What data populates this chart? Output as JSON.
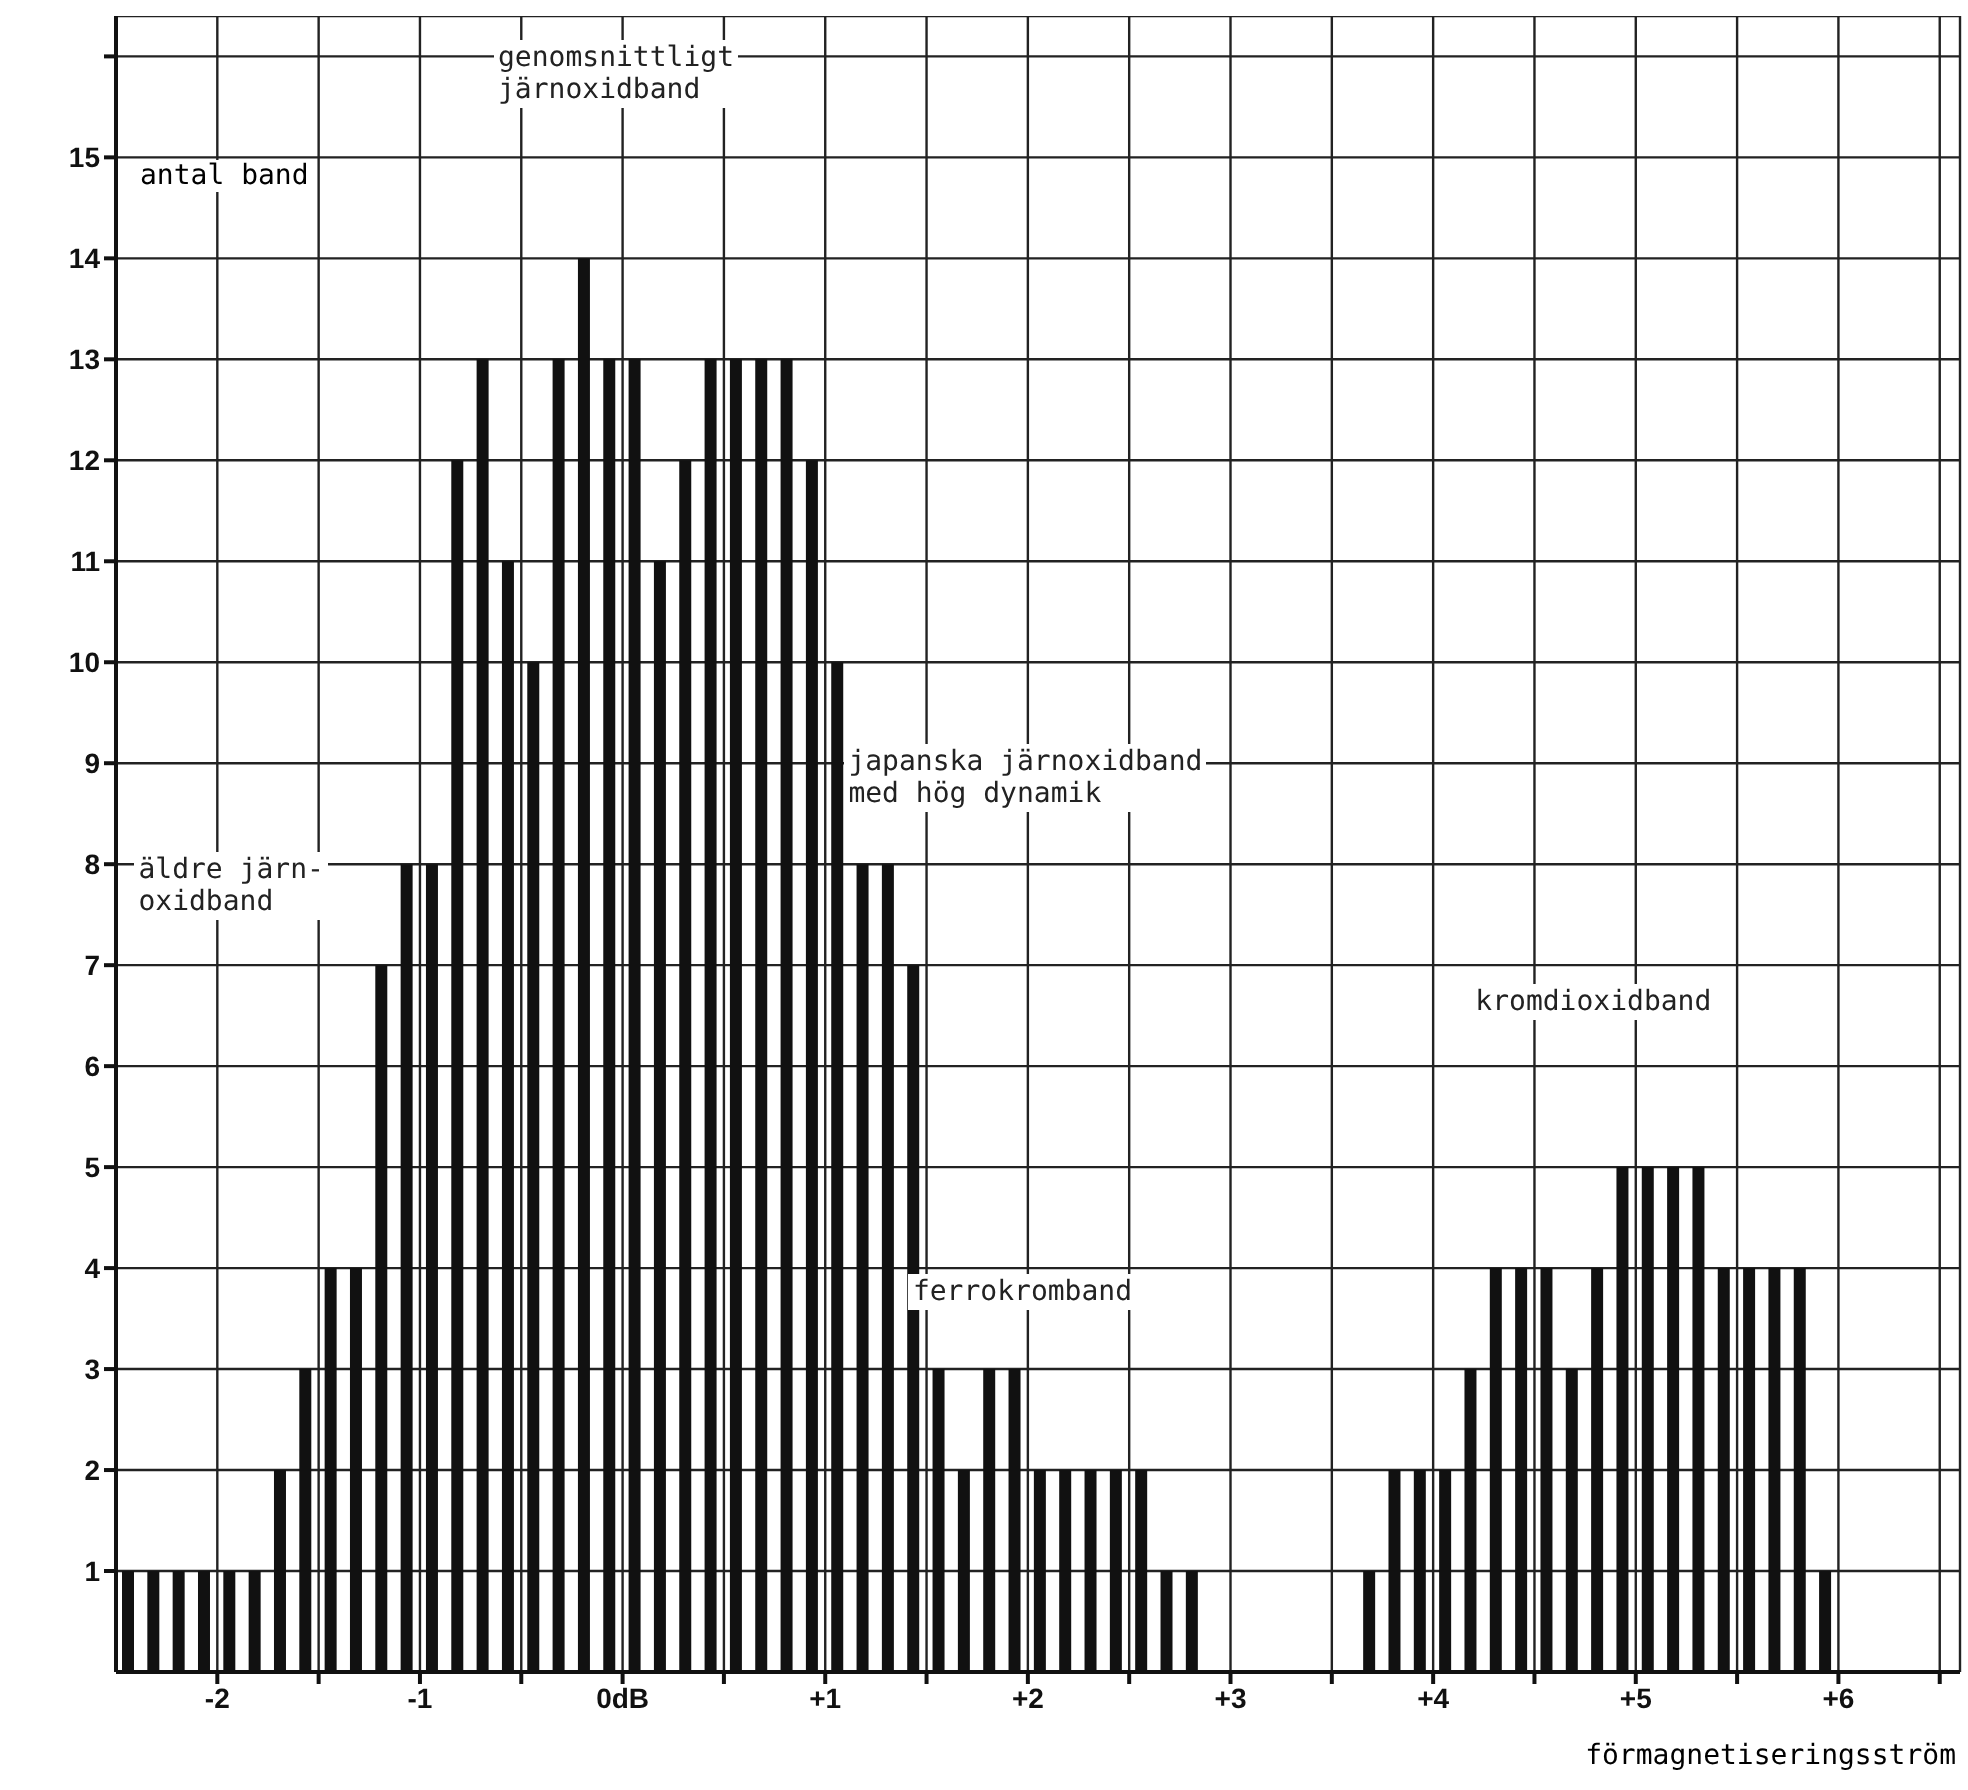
{
  "chart_data": {
    "type": "histogram",
    "xlabel": "förmagnetiseringsström",
    "ylabel": "antal band",
    "bins": [
      -2.5,
      -2.375,
      -2.25,
      -2.125,
      -2,
      -1.875,
      -1.75,
      -1.625,
      -1.5,
      -1.375,
      -1.25,
      -1.125,
      -1,
      -0.875,
      -0.75,
      -0.625,
      -0.5,
      -0.375,
      -0.25,
      -0.125,
      0,
      0.125,
      0.25,
      0.375,
      0.5,
      0.625,
      0.75,
      0.875,
      1,
      1.125,
      1.25,
      1.375,
      1.5,
      1.625,
      1.75,
      1.875,
      2,
      2.125,
      2.25,
      2.375,
      2.5,
      2.625,
      2.75,
      2.875,
      3,
      3.125,
      3.25,
      3.375,
      3.5,
      3.625,
      3.75,
      3.875,
      4,
      4.125,
      4.25,
      4.375,
      4.5,
      4.625,
      4.75,
      4.875,
      5,
      5.125,
      5.25,
      5.375,
      5.5,
      5.625,
      5.75,
      5.875,
      6
    ],
    "values": [
      1,
      1,
      1,
      1,
      1,
      1,
      2,
      3,
      4,
      4,
      7,
      8,
      8,
      12,
      13,
      11,
      10,
      13,
      14,
      13,
      13,
      11,
      12,
      13,
      13,
      13,
      13,
      12,
      10,
      8,
      8,
      7,
      3,
      2,
      3,
      3,
      2,
      2,
      2,
      2,
      2,
      1,
      1,
      0,
      0,
      0,
      0,
      0,
      0,
      1,
      2,
      2,
      2,
      3,
      4,
      4,
      4,
      3,
      4,
      5,
      5,
      5,
      5,
      4,
      4,
      4,
      4,
      1
    ],
    "color": "#111111",
    "xlim": [
      -2.5,
      6.6
    ],
    "xticks": [
      {
        "value": -2,
        "label": "-2"
      },
      {
        "value": -1.5,
        "label": null
      },
      {
        "value": -1,
        "label": "-1"
      },
      {
        "value": -0.5,
        "label": null
      },
      {
        "value": 0,
        "label": "0dB"
      },
      {
        "value": 0.5,
        "label": null
      },
      {
        "value": 1,
        "label": "+1"
      },
      {
        "value": 1.5,
        "label": null
      },
      {
        "value": 2,
        "label": "+2"
      },
      {
        "value": 2.5,
        "label": null
      },
      {
        "value": 3,
        "label": "+3"
      },
      {
        "value": 3.5,
        "label": null
      },
      {
        "value": 4,
        "label": "+4"
      },
      {
        "value": 4.5,
        "label": null
      },
      {
        "value": 5,
        "label": "+5"
      },
      {
        "value": 5.5,
        "label": null
      },
      {
        "value": 6,
        "label": "+6"
      },
      {
        "value": 6.5,
        "label": null
      }
    ],
    "ylim": [
      0,
      16.4
    ],
    "yticks": [
      1,
      2,
      3,
      4,
      5,
      6,
      7,
      8,
      9,
      10,
      11,
      12,
      13,
      14,
      15,
      {
        "value": 16,
        "label": null
      }
    ],
    "grid": true,
    "annotations": [
      "genomsnittligt\njärnoxidband",
      "äldre järn-\noxidband",
      "japanska järnoxidband\nmed hög dynamik",
      "ferrokromband",
      "kromdioxidband"
    ]
  }
}
